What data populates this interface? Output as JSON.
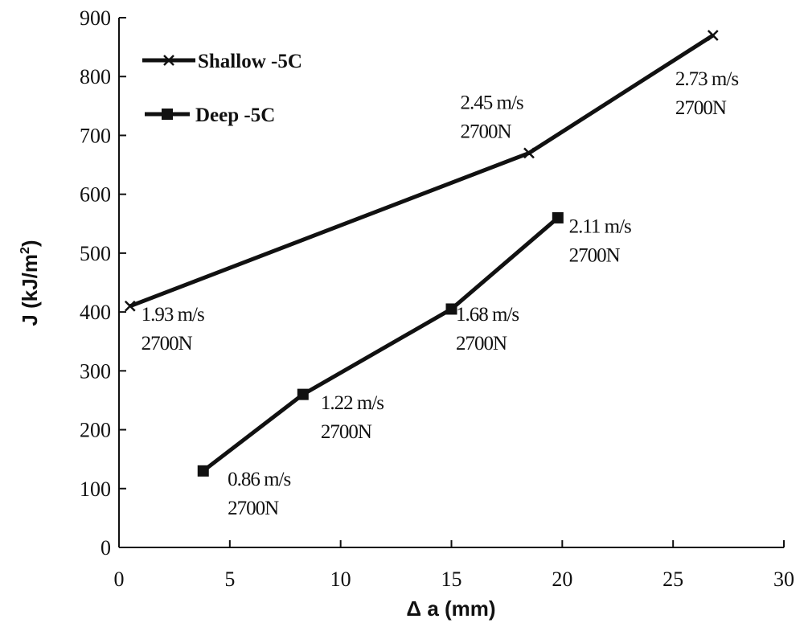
{
  "chart_data": {
    "type": "line",
    "title": "",
    "xlabel": "Δ a (mm)",
    "ylabel": "J (kJ/m²)",
    "ylabel_main": "J (kJ/m",
    "ylabel_sup": "2",
    "ylabel_close": ")",
    "xlim": [
      0,
      30
    ],
    "ylim": [
      0,
      900
    ],
    "xticks": [
      0,
      5,
      10,
      15,
      20,
      25,
      30
    ],
    "yticks": [
      0,
      100,
      200,
      300,
      400,
      500,
      600,
      700,
      800,
      900
    ],
    "grid": false,
    "legend_position": "top-left",
    "series": [
      {
        "name": "Shallow -5C",
        "marker": "x",
        "x": [
          0.5,
          18.5,
          26.8
        ],
        "y": [
          410,
          670,
          870
        ]
      },
      {
        "name": "Deep -5C",
        "marker": "square",
        "x": [
          3.8,
          8.3,
          15.0,
          19.8
        ],
        "y": [
          130,
          260,
          405,
          560
        ]
      }
    ],
    "annotations": [
      {
        "line1": "1.93 m/s",
        "line2": "2700N",
        "x": 1.0,
        "y": 385
      },
      {
        "line1": "2.45 m/s",
        "line2": "2700N",
        "x": 15.4,
        "y": 745
      },
      {
        "line1": "2.73 m/s",
        "line2": "2700N",
        "x": 25.1,
        "y": 785
      },
      {
        "line1": "0.86 m/s",
        "line2": "2700N",
        "x": 4.9,
        "y": 105
      },
      {
        "line1": "1.22 m/s",
        "line2": "2700N",
        "x": 9.1,
        "y": 235
      },
      {
        "line1": "1.68 m/s",
        "line2": "2700N",
        "x": 15.2,
        "y": 385
      },
      {
        "line1": "2.11 m/s",
        "line2": "2700N",
        "x": 20.3,
        "y": 535
      }
    ]
  }
}
